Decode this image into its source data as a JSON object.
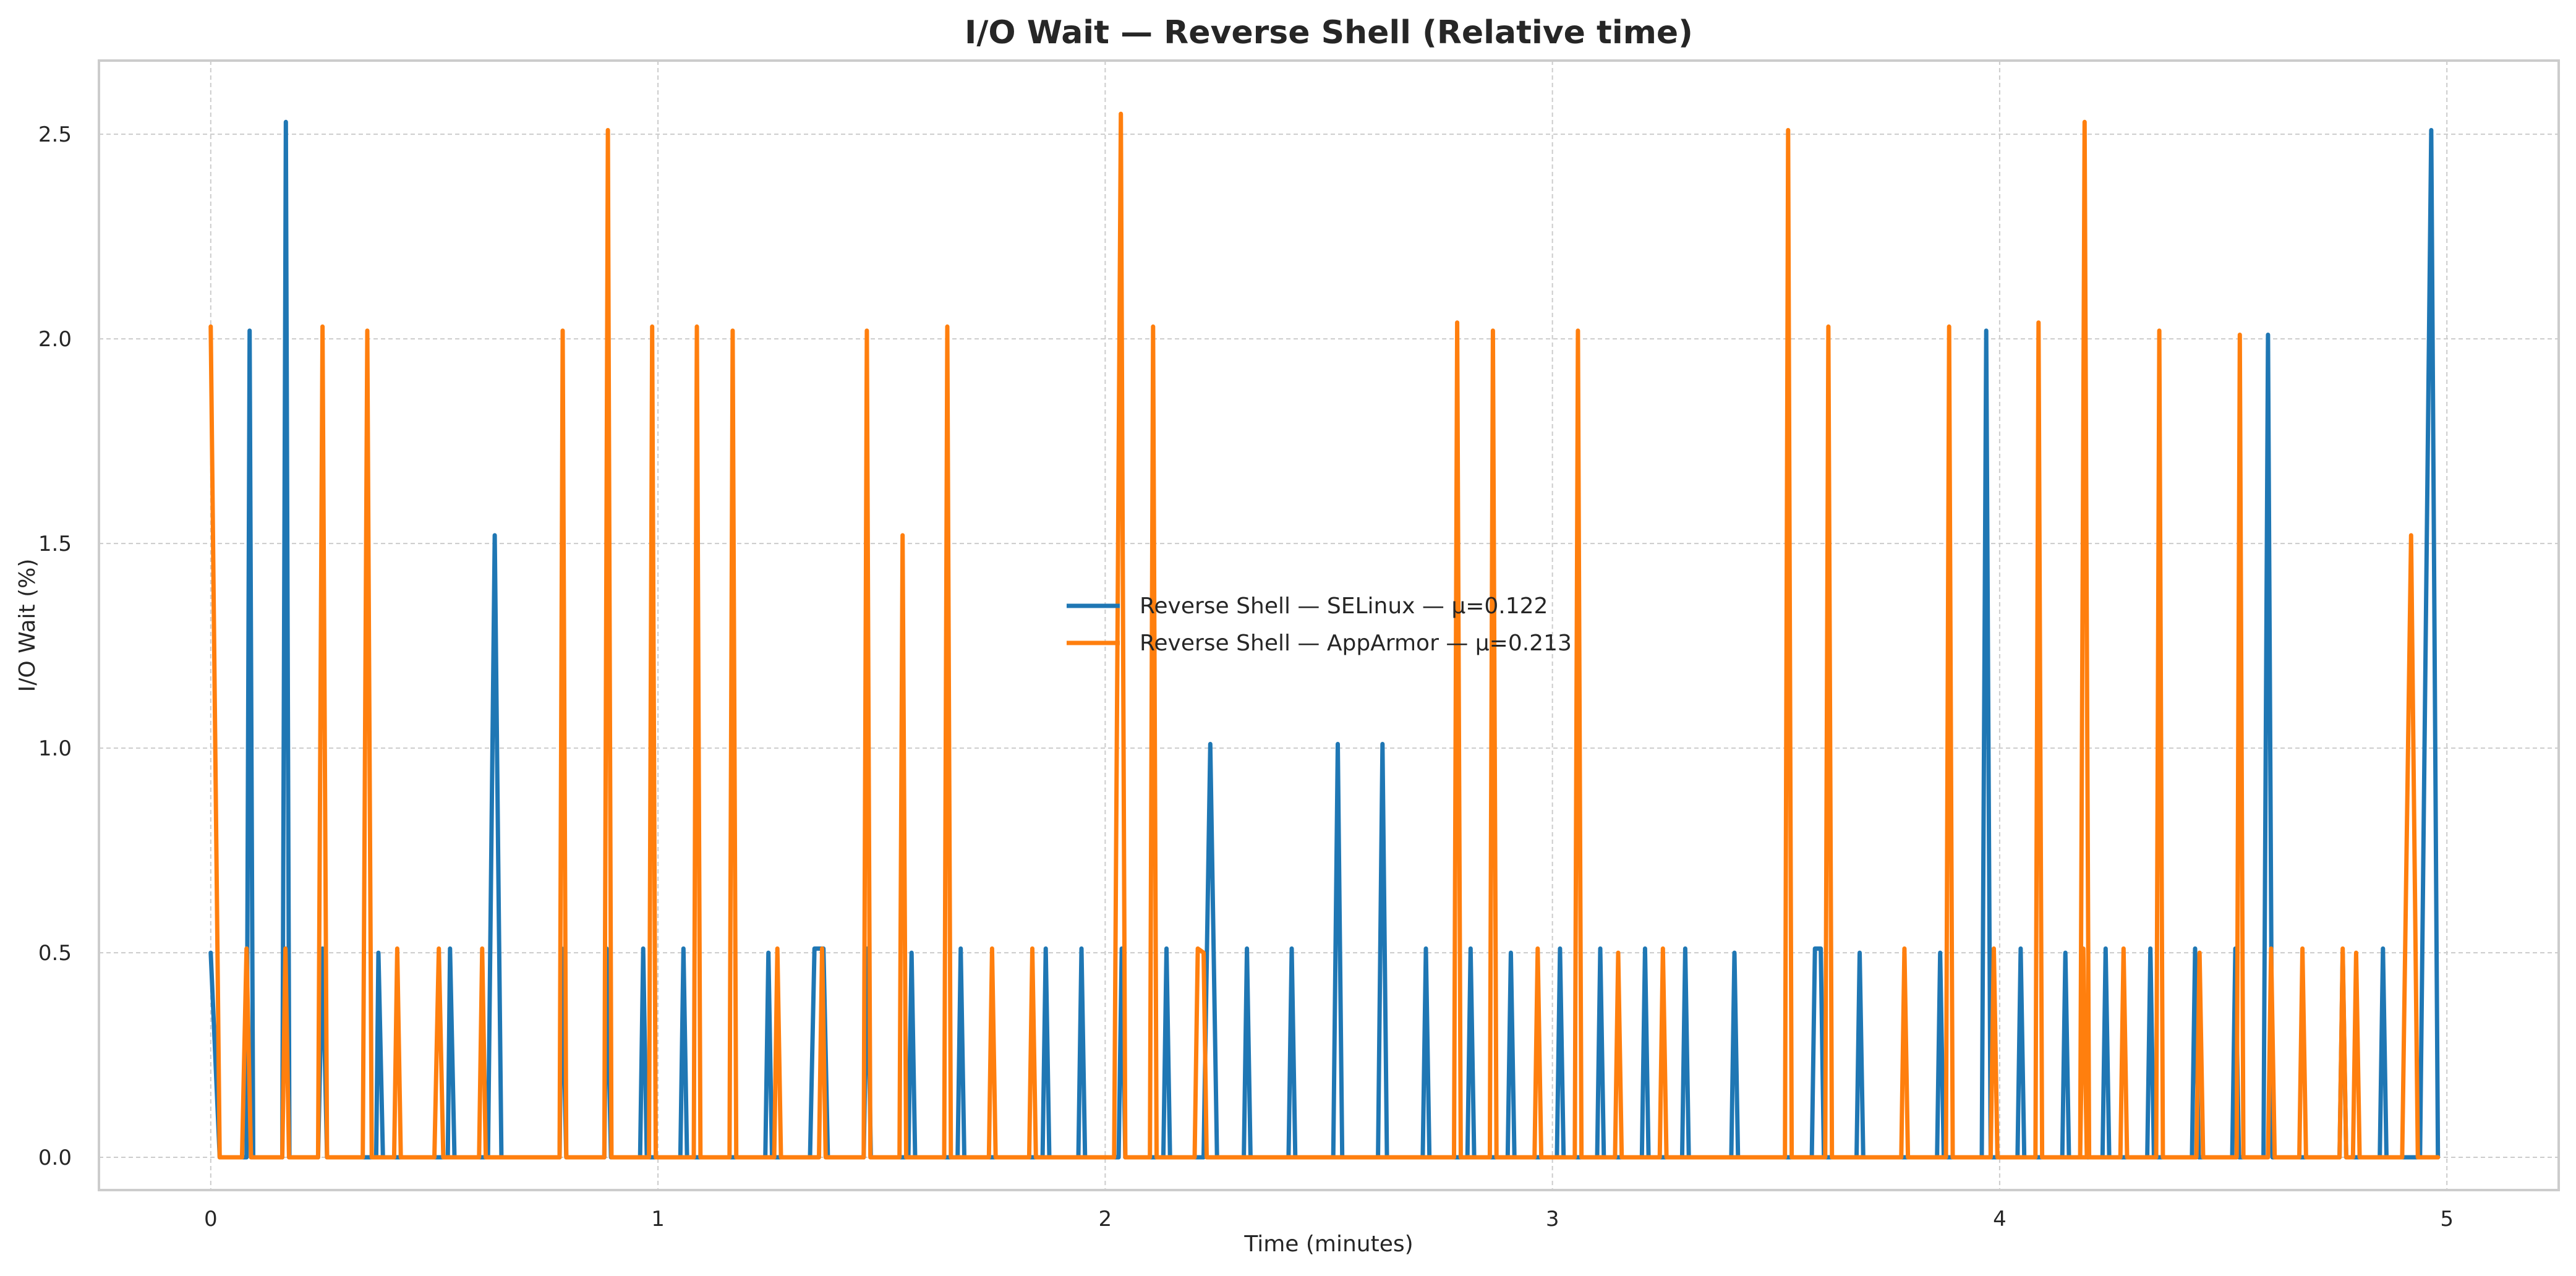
{
  "chart_data": {
    "type": "line",
    "title": "I/O Wait — Reverse Shell (Relative time)",
    "xlabel": "Time (minutes)",
    "ylabel": "I/O Wait (%)",
    "xlim": [
      -0.25,
      5.25
    ],
    "ylim": [
      -0.08,
      2.68
    ],
    "xticks": [
      0,
      1,
      2,
      3,
      4,
      5
    ],
    "xtick_labels": [
      "0",
      "1",
      "2",
      "3",
      "4",
      "5"
    ],
    "yticks": [
      0.0,
      0.5,
      1.0,
      1.5,
      2.0,
      2.5
    ],
    "ytick_labels": [
      "0.0",
      "0.5",
      "1.0",
      "1.5",
      "2.0",
      "2.5"
    ],
    "grid": true,
    "legend_position": "center",
    "series": [
      {
        "name": "Reverse Shell — SELinux — μ=0.122",
        "color": "#1f77b4",
        "points": [
          [
            0,
            0.5
          ],
          [
            0.02,
            0
          ],
          [
            0.08,
            0
          ],
          [
            0.087,
            2.02
          ],
          [
            0.095,
            0
          ],
          [
            0.16,
            0
          ],
          [
            0.168,
            2.53
          ],
          [
            0.176,
            0
          ],
          [
            0.24,
            0
          ],
          [
            0.25,
            0.51
          ],
          [
            0.26,
            0
          ],
          [
            0.37,
            0
          ],
          [
            0.375,
            0.5
          ],
          [
            0.385,
            0
          ],
          [
            0.53,
            0
          ],
          [
            0.535,
            0.51
          ],
          [
            0.545,
            0
          ],
          [
            0.62,
            0
          ],
          [
            0.635,
            1.52
          ],
          [
            0.65,
            0
          ],
          [
            0.78,
            0
          ],
          [
            0.785,
            0.51
          ],
          [
            0.795,
            0
          ],
          [
            0.88,
            0
          ],
          [
            0.885,
            0.51
          ],
          [
            0.895,
            0
          ],
          [
            0.96,
            0
          ],
          [
            0.967,
            0.51
          ],
          [
            0.975,
            0
          ],
          [
            1.05,
            0
          ],
          [
            1.057,
            0.51
          ],
          [
            1.065,
            0
          ],
          [
            1.24,
            0
          ],
          [
            1.247,
            0.5
          ],
          [
            1.255,
            0
          ],
          [
            1.34,
            0
          ],
          [
            1.35,
            0.51
          ],
          [
            1.37,
            0.51
          ],
          [
            1.38,
            0
          ],
          [
            1.46,
            0
          ],
          [
            1.468,
            0.51
          ],
          [
            1.476,
            0
          ],
          [
            1.56,
            0
          ],
          [
            1.567,
            0.5
          ],
          [
            1.575,
            0
          ],
          [
            1.67,
            0
          ],
          [
            1.677,
            0.51
          ],
          [
            1.685,
            0
          ],
          [
            1.86,
            0
          ],
          [
            1.867,
            0.51
          ],
          [
            1.875,
            0
          ],
          [
            1.94,
            0
          ],
          [
            1.947,
            0.51
          ],
          [
            1.955,
            0
          ],
          [
            2.03,
            0
          ],
          [
            2.037,
            0.51
          ],
          [
            2.045,
            0
          ],
          [
            2.13,
            0
          ],
          [
            2.137,
            0.51
          ],
          [
            2.145,
            0
          ],
          [
            2.22,
            0
          ],
          [
            2.235,
            1.01
          ],
          [
            2.25,
            0
          ],
          [
            2.31,
            0
          ],
          [
            2.317,
            0.51
          ],
          [
            2.325,
            0
          ],
          [
            2.41,
            0
          ],
          [
            2.417,
            0.51
          ],
          [
            2.425,
            0
          ],
          [
            2.51,
            0
          ],
          [
            2.52,
            1.01
          ],
          [
            2.53,
            0
          ],
          [
            2.61,
            0
          ],
          [
            2.62,
            1.01
          ],
          [
            2.63,
            0
          ],
          [
            2.71,
            0
          ],
          [
            2.717,
            0.51
          ],
          [
            2.725,
            0
          ],
          [
            2.81,
            0
          ],
          [
            2.817,
            0.51
          ],
          [
            2.825,
            0
          ],
          [
            2.9,
            0
          ],
          [
            2.907,
            0.5
          ],
          [
            2.915,
            0
          ],
          [
            3.01,
            0
          ],
          [
            3.017,
            0.51
          ],
          [
            3.025,
            0
          ],
          [
            3.1,
            0
          ],
          [
            3.107,
            0.51
          ],
          [
            3.115,
            0
          ],
          [
            3.2,
            0
          ],
          [
            3.207,
            0.51
          ],
          [
            3.215,
            0
          ],
          [
            3.29,
            0
          ],
          [
            3.297,
            0.51
          ],
          [
            3.305,
            0
          ],
          [
            3.4,
            0
          ],
          [
            3.407,
            0.5
          ],
          [
            3.415,
            0
          ],
          [
            3.58,
            0
          ],
          [
            3.587,
            0.51
          ],
          [
            3.6,
            0.51
          ],
          [
            3.607,
            0
          ],
          [
            3.68,
            0
          ],
          [
            3.687,
            0.5
          ],
          [
            3.695,
            0
          ],
          [
            3.86,
            0
          ],
          [
            3.867,
            0.5
          ],
          [
            3.875,
            0
          ],
          [
            3.96,
            0
          ],
          [
            3.97,
            2.02
          ],
          [
            3.98,
            0
          ],
          [
            4.04,
            0
          ],
          [
            4.047,
            0.51
          ],
          [
            4.055,
            0
          ],
          [
            4.14,
            0
          ],
          [
            4.147,
            0.5
          ],
          [
            4.155,
            0
          ],
          [
            4.23,
            0
          ],
          [
            4.237,
            0.51
          ],
          [
            4.245,
            0
          ],
          [
            4.33,
            0
          ],
          [
            4.337,
            0.51
          ],
          [
            4.345,
            0
          ],
          [
            4.43,
            0
          ],
          [
            4.437,
            0.51
          ],
          [
            4.445,
            0
          ],
          [
            4.52,
            0
          ],
          [
            4.527,
            0.51
          ],
          [
            4.535,
            0
          ],
          [
            4.59,
            0
          ],
          [
            4.6,
            2.01
          ],
          [
            4.61,
            0
          ],
          [
            4.76,
            0
          ],
          [
            4.767,
            0.5
          ],
          [
            4.775,
            0
          ],
          [
            4.85,
            0
          ],
          [
            4.857,
            0.51
          ],
          [
            4.865,
            0
          ],
          [
            4.94,
            0
          ],
          [
            4.965,
            2.51
          ],
          [
            4.98,
            0
          ]
        ]
      },
      {
        "name": "Reverse Shell — AppArmor — μ=0.213",
        "color": "#ff7f0e",
        "points": [
          [
            0,
            2.03
          ],
          [
            0.02,
            0
          ],
          [
            0.07,
            0
          ],
          [
            0.08,
            0.51
          ],
          [
            0.09,
            0
          ],
          [
            0.16,
            0
          ],
          [
            0.167,
            0.51
          ],
          [
            0.175,
            0
          ],
          [
            0.24,
            0
          ],
          [
            0.25,
            2.03
          ],
          [
            0.26,
            0
          ],
          [
            0.34,
            0
          ],
          [
            0.35,
            2.02
          ],
          [
            0.36,
            0
          ],
          [
            0.41,
            0
          ],
          [
            0.417,
            0.51
          ],
          [
            0.425,
            0
          ],
          [
            0.5,
            0
          ],
          [
            0.51,
            0.51
          ],
          [
            0.52,
            0
          ],
          [
            0.6,
            0
          ],
          [
            0.607,
            0.51
          ],
          [
            0.615,
            0
          ],
          [
            0.78,
            0
          ],
          [
            0.787,
            2.02
          ],
          [
            0.795,
            0
          ],
          [
            0.88,
            0
          ],
          [
            0.888,
            2.51
          ],
          [
            0.896,
            0
          ],
          [
            0.98,
            0
          ],
          [
            0.987,
            2.03
          ],
          [
            0.995,
            0
          ],
          [
            1.08,
            0
          ],
          [
            1.087,
            2.03
          ],
          [
            1.095,
            0
          ],
          [
            1.16,
            0
          ],
          [
            1.167,
            2.02
          ],
          [
            1.175,
            0
          ],
          [
            1.26,
            0
          ],
          [
            1.267,
            0.51
          ],
          [
            1.275,
            0
          ],
          [
            1.36,
            0
          ],
          [
            1.367,
            0.51
          ],
          [
            1.375,
            0
          ],
          [
            1.46,
            0
          ],
          [
            1.467,
            2.02
          ],
          [
            1.475,
            0
          ],
          [
            1.54,
            0
          ],
          [
            1.547,
            1.52
          ],
          [
            1.555,
            0
          ],
          [
            1.64,
            0
          ],
          [
            1.647,
            2.03
          ],
          [
            1.655,
            0
          ],
          [
            1.74,
            0
          ],
          [
            1.747,
            0.51
          ],
          [
            1.755,
            0
          ],
          [
            1.83,
            0
          ],
          [
            1.837,
            0.51
          ],
          [
            1.845,
            0
          ],
          [
            2.02,
            0
          ],
          [
            2.035,
            2.55
          ],
          [
            2.045,
            0
          ],
          [
            2.1,
            0
          ],
          [
            2.107,
            2.03
          ],
          [
            2.115,
            0
          ],
          [
            2.2,
            0
          ],
          [
            2.207,
            0.51
          ],
          [
            2.22,
            0.5
          ],
          [
            2.227,
            0
          ],
          [
            2.78,
            0
          ],
          [
            2.787,
            2.04
          ],
          [
            2.795,
            0
          ],
          [
            2.86,
            0
          ],
          [
            2.867,
            2.02
          ],
          [
            2.875,
            0
          ],
          [
            2.96,
            0
          ],
          [
            2.967,
            0.51
          ],
          [
            2.975,
            0
          ],
          [
            3.05,
            0
          ],
          [
            3.057,
            2.02
          ],
          [
            3.065,
            0
          ],
          [
            3.14,
            0
          ],
          [
            3.147,
            0.5
          ],
          [
            3.155,
            0
          ],
          [
            3.24,
            0
          ],
          [
            3.247,
            0.51
          ],
          [
            3.255,
            0
          ],
          [
            3.52,
            0
          ],
          [
            3.527,
            2.51
          ],
          [
            3.535,
            0
          ],
          [
            3.61,
            0
          ],
          [
            3.617,
            2.03
          ],
          [
            3.625,
            0
          ],
          [
            3.78,
            0
          ],
          [
            3.787,
            0.51
          ],
          [
            3.795,
            0
          ],
          [
            3.88,
            0
          ],
          [
            3.887,
            2.03
          ],
          [
            3.895,
            0
          ],
          [
            3.98,
            0
          ],
          [
            3.987,
            0.51
          ],
          [
            3.995,
            0
          ],
          [
            4.08,
            0
          ],
          [
            4.087,
            2.04
          ],
          [
            4.095,
            0
          ],
          [
            4.18,
            0
          ],
          [
            4.187,
            0.51
          ],
          [
            4.195,
            0
          ],
          [
            4.18,
            0
          ],
          [
            4.19,
            2.53
          ],
          [
            4.2,
            0
          ],
          [
            4.27,
            0
          ],
          [
            4.277,
            0.51
          ],
          [
            4.285,
            0
          ],
          [
            4.35,
            0
          ],
          [
            4.357,
            2.02
          ],
          [
            4.365,
            0
          ],
          [
            4.44,
            0
          ],
          [
            4.447,
            0.5
          ],
          [
            4.455,
            0
          ],
          [
            4.53,
            0
          ],
          [
            4.537,
            2.01
          ],
          [
            4.545,
            0
          ],
          [
            4.6,
            0
          ],
          [
            4.607,
            0.51
          ],
          [
            4.615,
            0
          ],
          [
            4.67,
            0
          ],
          [
            4.677,
            0.51
          ],
          [
            4.685,
            0
          ],
          [
            4.76,
            0
          ],
          [
            4.767,
            0.51
          ],
          [
            4.775,
            0
          ],
          [
            4.79,
            0
          ],
          [
            4.797,
            0.5
          ],
          [
            4.805,
            0
          ],
          [
            4.9,
            0
          ],
          [
            4.92,
            1.52
          ],
          [
            4.935,
            0
          ],
          [
            4.98,
            0
          ]
        ]
      }
    ]
  }
}
